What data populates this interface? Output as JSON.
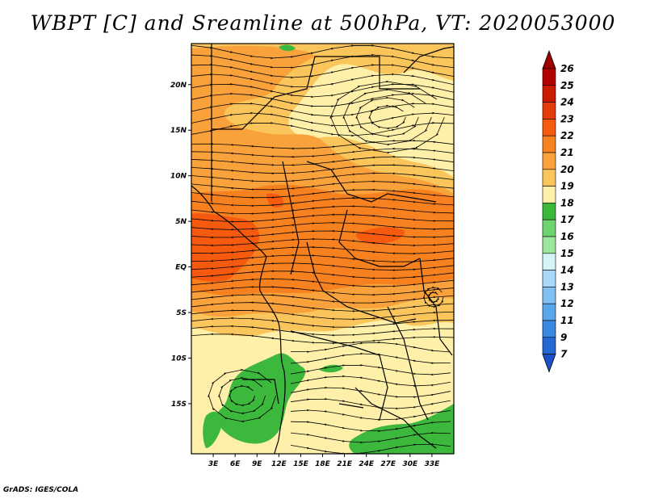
{
  "title": "WBPT [C] and Sreamline at 500hPa, VT: 2020053000",
  "credit": "GrADS: IGES/COLA",
  "map": {
    "lon_range": [
      0,
      36
    ],
    "lat_range": [
      -20.5,
      24.5
    ],
    "x_ticks": [
      {
        "lon": 3,
        "label": "3E"
      },
      {
        "lon": 6,
        "label": "6E"
      },
      {
        "lon": 9,
        "label": "9E"
      },
      {
        "lon": 12,
        "label": "12E"
      },
      {
        "lon": 15,
        "label": "15E"
      },
      {
        "lon": 18,
        "label": "18E"
      },
      {
        "lon": 21,
        "label": "21E"
      },
      {
        "lon": 24,
        "label": "24E"
      },
      {
        "lon": 27,
        "label": "27E"
      },
      {
        "lon": 30,
        "label": "30E"
      },
      {
        "lon": 33,
        "label": "33E"
      }
    ],
    "y_ticks": [
      {
        "lat": 20,
        "label": "20N"
      },
      {
        "lat": 15,
        "label": "15N"
      },
      {
        "lat": 10,
        "label": "10N"
      },
      {
        "lat": 5,
        "label": "5N"
      },
      {
        "lat": 0,
        "label": "EQ"
      },
      {
        "lat": -5,
        "label": "5S"
      },
      {
        "lat": -10,
        "label": "10S"
      },
      {
        "lat": -15,
        "label": "15S"
      }
    ],
    "fields": {
      "variable": "WBPT",
      "units": "C",
      "level": "500hPa",
      "valid_time": "2020053000",
      "overlay": "streamlines"
    }
  },
  "legend": {
    "labels": [
      "26",
      "25",
      "24",
      "23",
      "22",
      "21",
      "20",
      "19",
      "18",
      "17",
      "16",
      "15",
      "14",
      "13",
      "12",
      "11",
      "9",
      "7"
    ],
    "colors": [
      "#b30000",
      "#cc1a00",
      "#e63b0a",
      "#f55a0f",
      "#f7801f",
      "#f9a13a",
      "#fac65c",
      "#fef0a8",
      "#3cb83c",
      "#6fd36f",
      "#9de69d",
      "#d4f4f8",
      "#a9d9fa",
      "#80c0f2",
      "#5aa6ea",
      "#3a88df",
      "#2468d4"
    ],
    "top_arrow_color": "#9e0000",
    "bottom_arrow_color": "#1e50c8"
  }
}
